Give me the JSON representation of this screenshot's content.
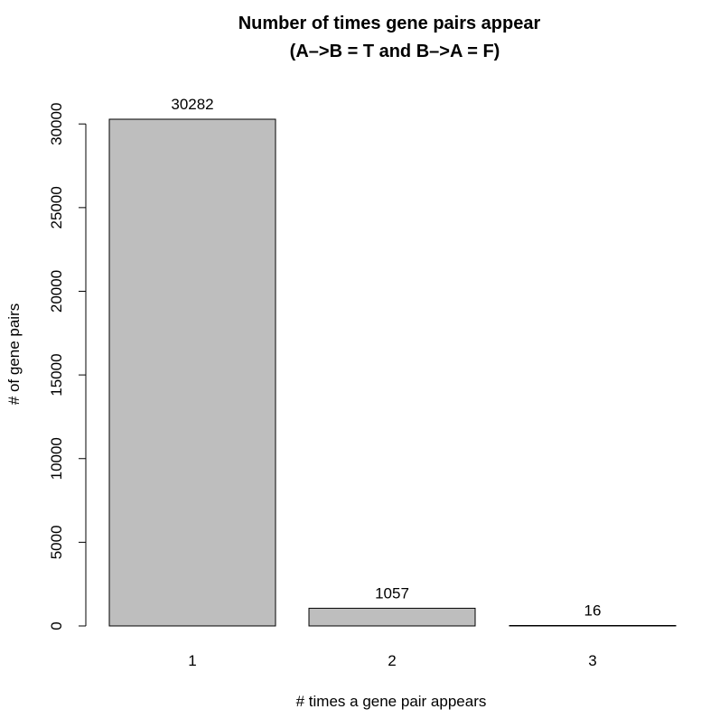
{
  "chart_data": {
    "type": "bar",
    "title": "Number of times gene pairs appear",
    "subtitle": "(A–>B = T and B–>A = F)",
    "xlabel": "# times a gene pair appears",
    "ylabel": "# of gene pairs",
    "categories": [
      "1",
      "2",
      "3"
    ],
    "values": [
      30282,
      1057,
      16
    ],
    "data_labels": [
      "30282",
      "1057",
      "16"
    ],
    "yticks": [
      0,
      5000,
      10000,
      15000,
      20000,
      25000,
      30000
    ],
    "ytick_labels": [
      "0",
      "5000",
      "10000",
      "15000",
      "20000",
      "25000",
      "30000"
    ],
    "ylim": [
      0,
      30282
    ],
    "grid": false,
    "bar_fill": "#bebebe",
    "bar_stroke": "#000000"
  }
}
